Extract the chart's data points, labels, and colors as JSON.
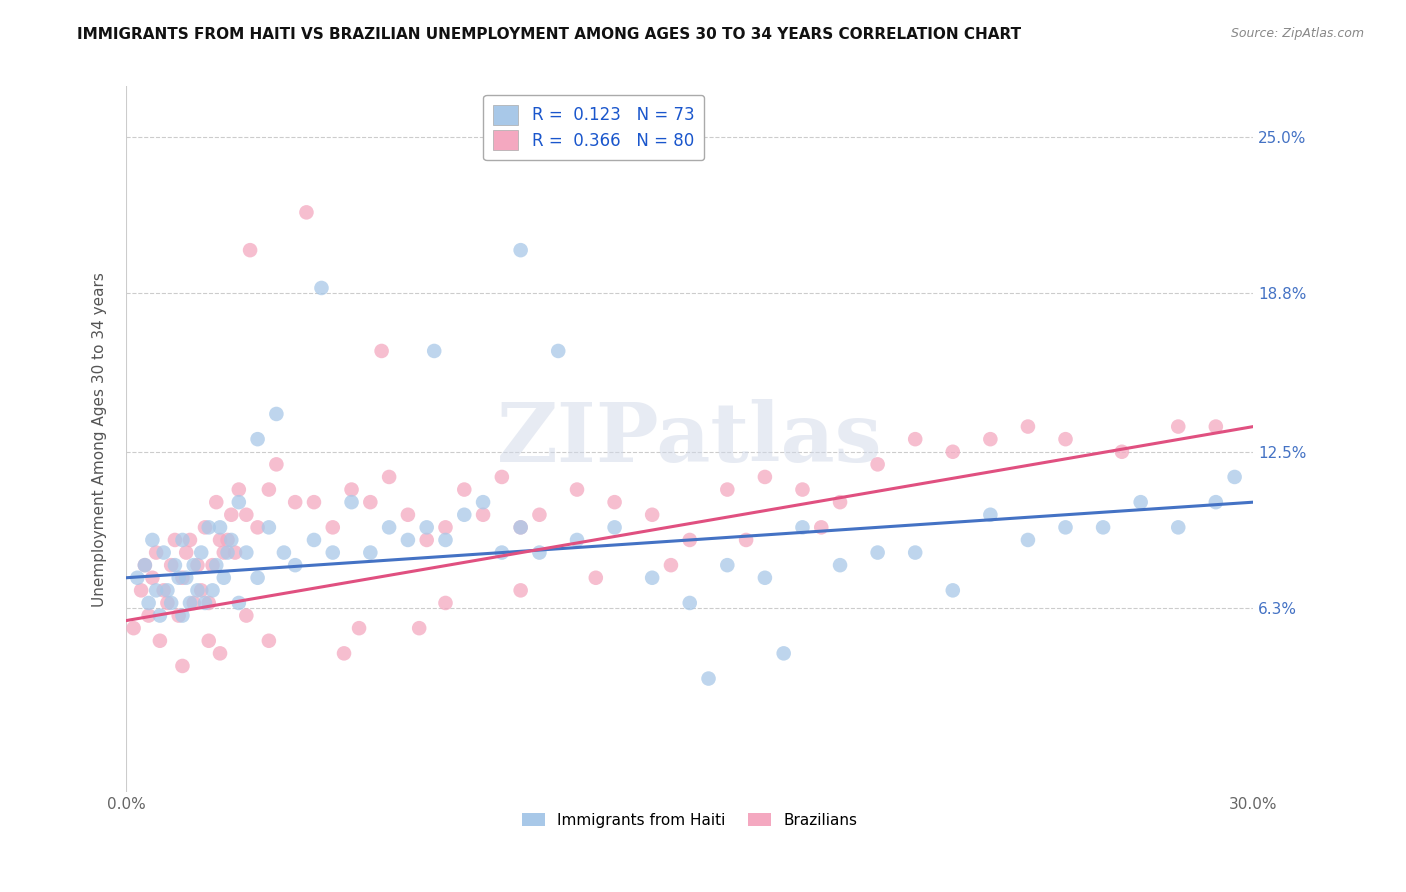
{
  "title": "IMMIGRANTS FROM HAITI VS BRAZILIAN UNEMPLOYMENT AMONG AGES 30 TO 34 YEARS CORRELATION CHART",
  "source": "Source: ZipAtlas.com",
  "ylabel": "Unemployment Among Ages 30 to 34 years",
  "ytick_labels": [
    "6.3%",
    "12.5%",
    "18.8%",
    "25.0%"
  ],
  "ytick_values": [
    6.3,
    12.5,
    18.8,
    25.0
  ],
  "xlim": [
    0.0,
    30.0
  ],
  "ylim": [
    -1.0,
    27.0
  ],
  "legend_label_haiti": "Immigrants from Haiti",
  "legend_label_brazil": "Brazilians",
  "color_haiti": "#a8c8e8",
  "color_brazil": "#f4a8c0",
  "color_haiti_line": "#4472c4",
  "color_brazil_line": "#e05080",
  "watermark": "ZIPatlas",
  "haiti_trend_x0": 0,
  "haiti_trend_y0": 7.5,
  "haiti_trend_x1": 30,
  "haiti_trend_y1": 10.5,
  "brazil_trend_x0": 0,
  "brazil_trend_y0": 5.8,
  "brazil_trend_x1": 30,
  "brazil_trend_y1": 13.5,
  "scatter_haiti_x": [
    0.3,
    0.5,
    0.6,
    0.7,
    0.8,
    0.9,
    1.0,
    1.1,
    1.2,
    1.3,
    1.4,
    1.5,
    1.5,
    1.6,
    1.7,
    1.8,
    1.9,
    2.0,
    2.1,
    2.2,
    2.3,
    2.4,
    2.5,
    2.6,
    2.7,
    2.8,
    3.0,
    3.0,
    3.2,
    3.5,
    3.8,
    4.0,
    4.5,
    5.0,
    5.5,
    6.0,
    6.5,
    7.0,
    7.5,
    8.0,
    8.5,
    9.0,
    9.5,
    10.0,
    10.5,
    11.0,
    12.0,
    13.0,
    14.0,
    15.0,
    16.0,
    17.0,
    18.0,
    19.0,
    20.0,
    21.0,
    22.0,
    23.0,
    24.0,
    25.0,
    26.0,
    27.0,
    28.0,
    29.0,
    29.5,
    10.5,
    11.5,
    15.5,
    17.5,
    3.5,
    4.2,
    5.2,
    8.2
  ],
  "scatter_haiti_y": [
    7.5,
    8.0,
    6.5,
    9.0,
    7.0,
    6.0,
    8.5,
    7.0,
    6.5,
    8.0,
    7.5,
    6.0,
    9.0,
    7.5,
    6.5,
    8.0,
    7.0,
    8.5,
    6.5,
    9.5,
    7.0,
    8.0,
    9.5,
    7.5,
    8.5,
    9.0,
    6.5,
    10.5,
    8.5,
    7.5,
    9.5,
    14.0,
    8.0,
    9.0,
    8.5,
    10.5,
    8.5,
    9.5,
    9.0,
    9.5,
    9.0,
    10.0,
    10.5,
    8.5,
    9.5,
    8.5,
    9.0,
    9.5,
    7.5,
    6.5,
    8.0,
    7.5,
    9.5,
    8.0,
    8.5,
    8.5,
    7.0,
    10.0,
    9.0,
    9.5,
    9.5,
    10.5,
    9.5,
    10.5,
    11.5,
    20.5,
    16.5,
    3.5,
    4.5,
    13.0,
    8.5,
    19.0,
    16.5
  ],
  "scatter_brazil_x": [
    0.2,
    0.4,
    0.5,
    0.6,
    0.7,
    0.8,
    0.9,
    1.0,
    1.1,
    1.2,
    1.3,
    1.4,
    1.5,
    1.6,
    1.7,
    1.8,
    1.9,
    2.0,
    2.1,
    2.2,
    2.3,
    2.4,
    2.5,
    2.6,
    2.7,
    2.8,
    2.9,
    3.0,
    3.2,
    3.5,
    3.8,
    4.0,
    4.5,
    5.0,
    5.5,
    6.0,
    6.5,
    7.0,
    7.5,
    8.0,
    8.5,
    9.0,
    9.5,
    10.0,
    10.5,
    11.0,
    12.0,
    13.0,
    14.0,
    15.0,
    16.0,
    17.0,
    18.0,
    19.0,
    20.0,
    21.0,
    22.0,
    23.0,
    24.0,
    25.0,
    26.5,
    28.0,
    29.0,
    3.3,
    4.8,
    6.8,
    2.5,
    3.8,
    5.8,
    7.8,
    1.5,
    2.2,
    3.2,
    6.2,
    8.5,
    10.5,
    12.5,
    14.5,
    16.5,
    18.5
  ],
  "scatter_brazil_y": [
    5.5,
    7.0,
    8.0,
    6.0,
    7.5,
    8.5,
    5.0,
    7.0,
    6.5,
    8.0,
    9.0,
    6.0,
    7.5,
    8.5,
    9.0,
    6.5,
    8.0,
    7.0,
    9.5,
    6.5,
    8.0,
    10.5,
    9.0,
    8.5,
    9.0,
    10.0,
    8.5,
    11.0,
    10.0,
    9.5,
    11.0,
    12.0,
    10.5,
    10.5,
    9.5,
    11.0,
    10.5,
    11.5,
    10.0,
    9.0,
    9.5,
    11.0,
    10.0,
    11.5,
    9.5,
    10.0,
    11.0,
    10.5,
    10.0,
    9.0,
    11.0,
    11.5,
    11.0,
    10.5,
    12.0,
    13.0,
    12.5,
    13.0,
    13.5,
    13.0,
    12.5,
    13.5,
    13.5,
    20.5,
    22.0,
    16.5,
    4.5,
    5.0,
    4.5,
    5.5,
    4.0,
    5.0,
    6.0,
    5.5,
    6.5,
    7.0,
    7.5,
    8.0,
    9.0,
    9.5
  ]
}
